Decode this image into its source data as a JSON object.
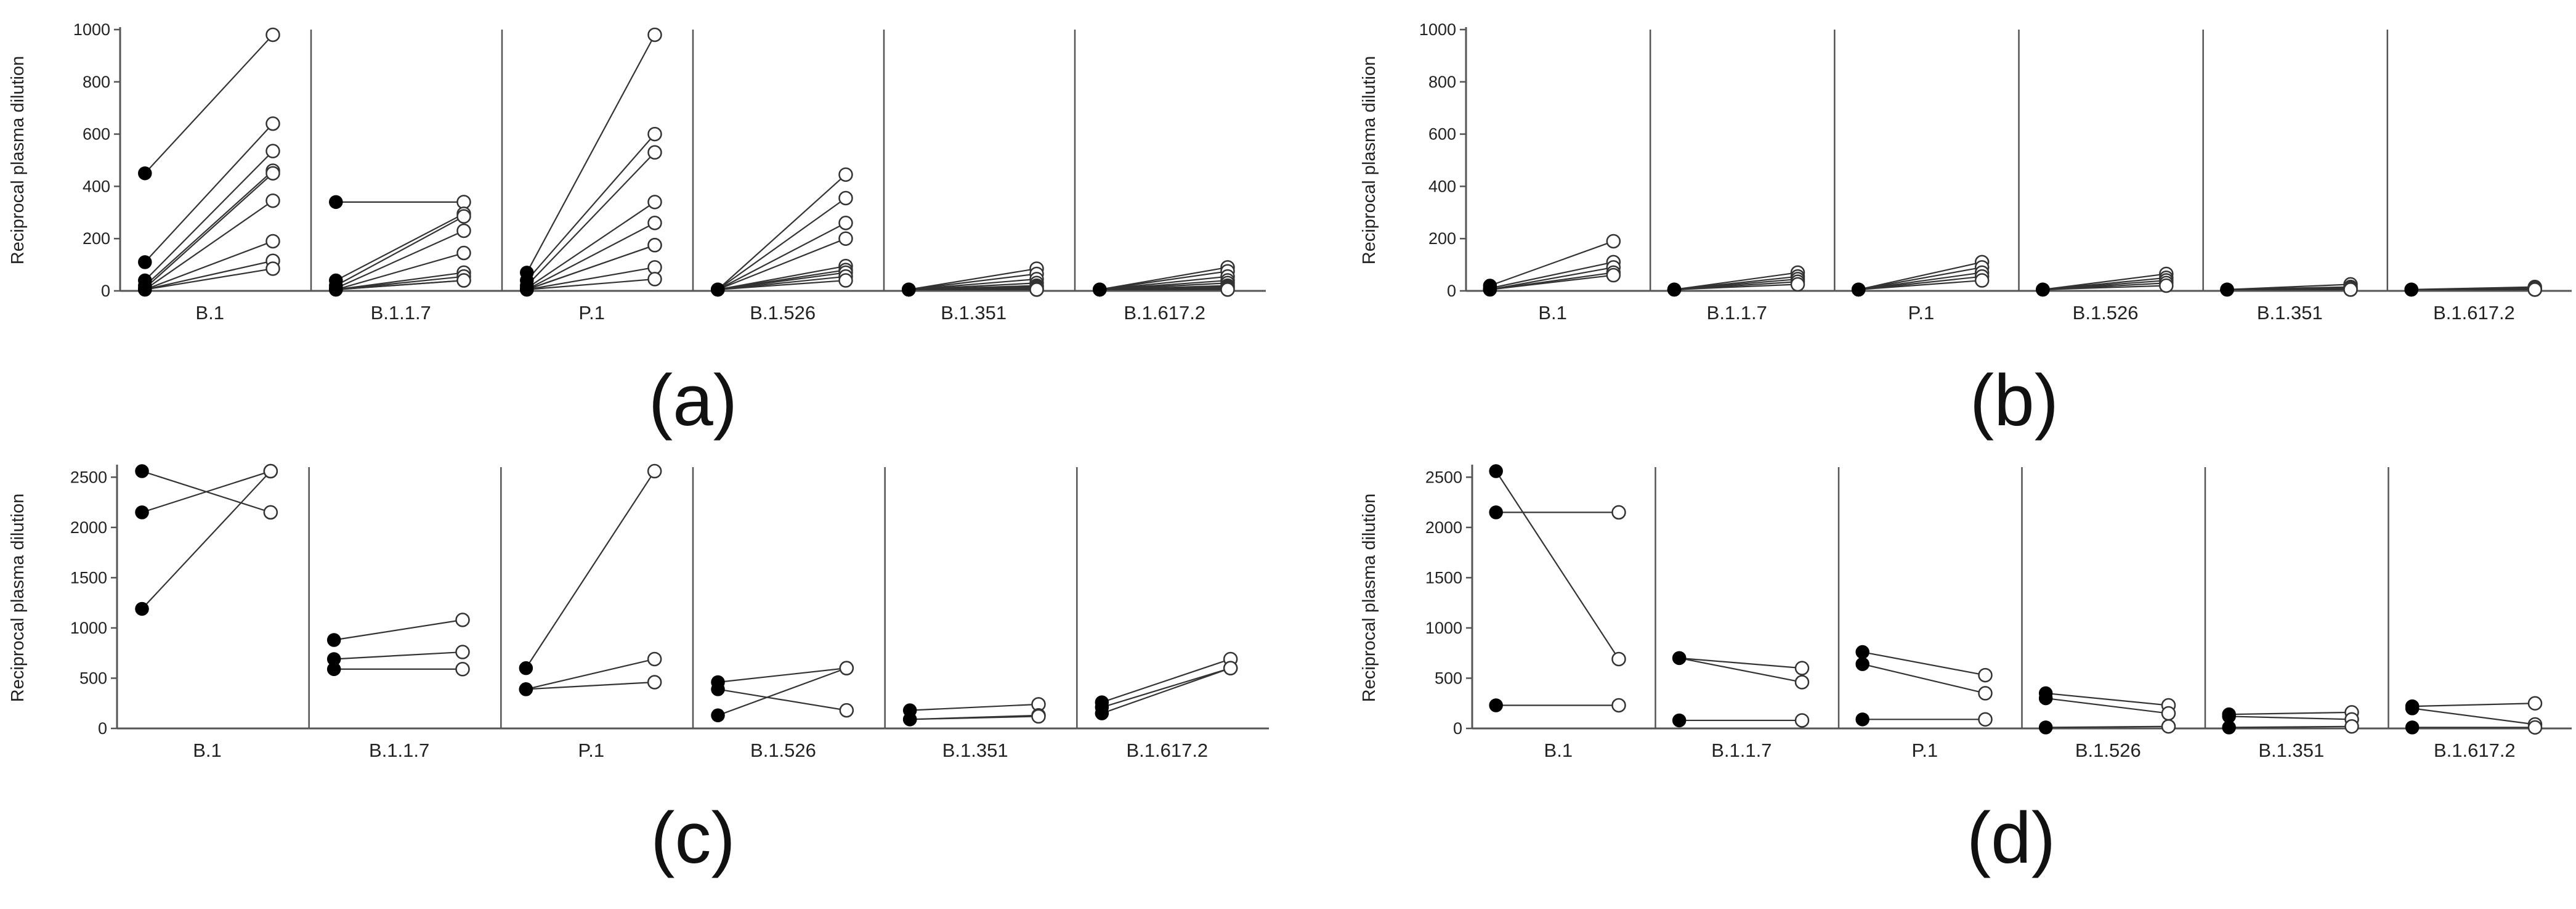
{
  "chart_data": [
    {
      "type": "line",
      "panel_label": "(a)",
      "ylabel": "Reciprocal plasma dilution",
      "ylim": [
        0,
        1000
      ],
      "yticks": [
        0,
        200,
        400,
        600,
        800,
        1000
      ],
      "categories": [
        "B.1",
        "B.1.1.7",
        "P.1",
        "B.1.526",
        "B.1.351",
        "B.1.617.2"
      ],
      "pairs": [
        [
          [
            450,
            980
          ],
          [
            110,
            640
          ],
          [
            40,
            535
          ],
          [
            20,
            460
          ],
          [
            10,
            450
          ],
          [
            5,
            345
          ],
          [
            5,
            190
          ],
          [
            5,
            115
          ],
          [
            5,
            85
          ]
        ],
        [
          [
            340,
            340
          ],
          [
            40,
            295
          ],
          [
            20,
            285
          ],
          [
            10,
            230
          ],
          [
            5,
            145
          ],
          [
            5,
            70
          ],
          [
            5,
            55
          ],
          [
            5,
            40
          ],
          [
            5,
            40
          ]
        ],
        [
          [
            70,
            980
          ],
          [
            40,
            600
          ],
          [
            20,
            530
          ],
          [
            10,
            340
          ],
          [
            5,
            260
          ],
          [
            5,
            175
          ],
          [
            5,
            175
          ],
          [
            5,
            90
          ],
          [
            5,
            45
          ]
        ],
        [
          [
            5,
            445
          ],
          [
            5,
            355
          ],
          [
            5,
            260
          ],
          [
            5,
            200
          ],
          [
            5,
            95
          ],
          [
            5,
            80
          ],
          [
            5,
            70
          ],
          [
            5,
            55
          ],
          [
            5,
            40
          ]
        ],
        [
          [
            5,
            85
          ],
          [
            5,
            65
          ],
          [
            5,
            45
          ],
          [
            5,
            30
          ],
          [
            5,
            20
          ],
          [
            5,
            15
          ],
          [
            5,
            10
          ],
          [
            5,
            5
          ],
          [
            5,
            5
          ]
        ],
        [
          [
            5,
            90
          ],
          [
            5,
            75
          ],
          [
            5,
            55
          ],
          [
            5,
            40
          ],
          [
            5,
            30
          ],
          [
            5,
            20
          ],
          [
            5,
            15
          ],
          [
            5,
            10
          ],
          [
            5,
            5
          ]
        ]
      ]
    },
    {
      "type": "line",
      "panel_label": "(b)",
      "ylabel": "Reciprocal plasma dilution",
      "ylim": [
        0,
        1000
      ],
      "yticks": [
        0,
        200,
        400,
        600,
        800,
        1000
      ],
      "categories": [
        "B.1",
        "B.1.1.7",
        "P.1",
        "B.1.526",
        "B.1.351",
        "B.1.617.2"
      ],
      "pairs": [
        [
          [
            20,
            190
          ],
          [
            10,
            110
          ],
          [
            5,
            90
          ],
          [
            5,
            70
          ],
          [
            5,
            60
          ]
        ],
        [
          [
            5,
            70
          ],
          [
            5,
            55
          ],
          [
            5,
            45
          ],
          [
            5,
            35
          ],
          [
            5,
            25
          ]
        ],
        [
          [
            5,
            110
          ],
          [
            5,
            90
          ],
          [
            5,
            70
          ],
          [
            5,
            55
          ],
          [
            5,
            40
          ]
        ],
        [
          [
            5,
            65
          ],
          [
            5,
            50
          ],
          [
            5,
            40
          ],
          [
            5,
            30
          ],
          [
            5,
            20
          ]
        ],
        [
          [
            5,
            25
          ],
          [
            5,
            15
          ],
          [
            5,
            10
          ],
          [
            5,
            5
          ],
          [
            5,
            5
          ]
        ],
        [
          [
            5,
            15
          ],
          [
            5,
            10
          ],
          [
            5,
            5
          ],
          [
            5,
            5
          ],
          [
            5,
            5
          ]
        ]
      ]
    },
    {
      "type": "line",
      "panel_label": "(c)",
      "ylabel": "Reciprocal plasma dilution",
      "ylim": [
        0,
        2600
      ],
      "yticks": [
        0,
        500,
        1000,
        1500,
        2000,
        2500
      ],
      "categories": [
        "B.1",
        "B.1.1.7",
        "P.1",
        "B.1.526",
        "B.1.351",
        "B.1.617.2"
      ],
      "pairs": [
        [
          [
            2560,
            2150
          ],
          [
            2150,
            2560
          ],
          [
            1190,
            2560
          ]
        ],
        [
          [
            880,
            1080
          ],
          [
            690,
            760
          ],
          [
            590,
            590
          ]
        ],
        [
          [
            600,
            2560
          ],
          [
            390,
            690
          ],
          [
            390,
            460
          ]
        ],
        [
          [
            460,
            600
          ],
          [
            390,
            180
          ],
          [
            130,
            600
          ]
        ],
        [
          [
            180,
            240
          ],
          [
            90,
            130
          ],
          [
            90,
            120
          ]
        ],
        [
          [
            260,
            690
          ],
          [
            210,
            600
          ],
          [
            150,
            600
          ]
        ]
      ]
    },
    {
      "type": "line",
      "panel_label": "(d)",
      "ylabel": "Reciprocal plasma dilution",
      "ylim": [
        0,
        2600
      ],
      "yticks": [
        0,
        500,
        1000,
        1500,
        2000,
        2500
      ],
      "categories": [
        "B.1",
        "B.1.1.7",
        "P.1",
        "B.1.526",
        "B.1.351",
        "B.1.617.2"
      ],
      "pairs": [
        [
          [
            2560,
            690
          ],
          [
            2150,
            2150
          ],
          [
            230,
            230
          ]
        ],
        [
          [
            700,
            600
          ],
          [
            700,
            460
          ],
          [
            80,
            80
          ]
        ],
        [
          [
            760,
            530
          ],
          [
            640,
            350
          ],
          [
            90,
            90
          ]
        ],
        [
          [
            350,
            230
          ],
          [
            300,
            150
          ],
          [
            10,
            20
          ]
        ],
        [
          [
            140,
            160
          ],
          [
            120,
            90
          ],
          [
            10,
            20
          ]
        ],
        [
          [
            220,
            250
          ],
          [
            200,
            40
          ],
          [
            10,
            10
          ]
        ]
      ]
    }
  ]
}
